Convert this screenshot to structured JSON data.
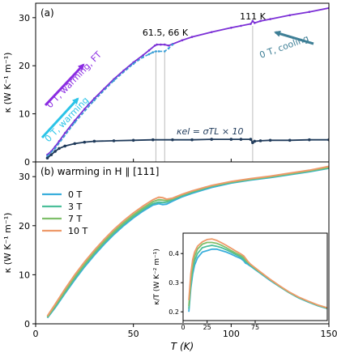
{
  "chart_data": [
    {
      "type": "line",
      "panel_label": "(a)",
      "ylabel": "κ (W K⁻¹ m⁻¹)",
      "ylim": [
        0,
        33
      ],
      "xlim": [
        0,
        150
      ],
      "yticks": [
        0,
        10,
        20,
        30
      ],
      "grid": false,
      "legend": "none",
      "annotations": {
        "transitions": "61.5, 66 K",
        "cooling_transition": "111 K",
        "warming_ft": "0 T, warming, FT",
        "warming": "0 T, warming",
        "cooling": "0 T, cooling",
        "kel_formula": "κel = σTL × 10"
      },
      "vlines": [
        61.5,
        66,
        111
      ],
      "series": [
        {
          "color": "#7b2fd6",
          "x": [
            6,
            8,
            10,
            12,
            15,
            20,
            25,
            30,
            35,
            40,
            45,
            50,
            55,
            58,
            61,
            62,
            64,
            66,
            68,
            70,
            75,
            80,
            90,
            100,
            105,
            110,
            111,
            112,
            115,
            120,
            130,
            140,
            150
          ],
          "y": [
            1.5,
            2.2,
            3.2,
            4.3,
            6.0,
            8.6,
            11.0,
            13.2,
            15.2,
            17.2,
            19.0,
            20.7,
            22.2,
            23.2,
            24.2,
            24.4,
            24.4,
            24.4,
            24.2,
            24.5,
            25.3,
            26.0,
            27.0,
            27.9,
            28.3,
            28.7,
            29.3,
            28.9,
            29.3,
            29.7,
            30.5,
            31.2,
            32.0
          ]
        },
        {
          "color": "#3a9fd6",
          "x": [
            6,
            10,
            20,
            30,
            40,
            50,
            55,
            58,
            60,
            61.5,
            63,
            66,
            68,
            70
          ],
          "y": [
            1.2,
            2.8,
            8.2,
            12.8,
            16.9,
            20.4,
            21.8,
            22.4,
            22.8,
            23.0,
            23.0,
            23.0,
            23.6,
            24.4
          ]
        },
        {
          "color": "#1f3a5a",
          "x": [
            6,
            8,
            10,
            12,
            15,
            20,
            25,
            30,
            40,
            50,
            60,
            70,
            80,
            90,
            100,
            105,
            110,
            111,
            112,
            115,
            120,
            130,
            140,
            150
          ],
          "y": [
            0.8,
            1.5,
            2.2,
            2.8,
            3.3,
            3.8,
            4.1,
            4.3,
            4.4,
            4.5,
            4.6,
            4.6,
            4.6,
            4.7,
            4.7,
            4.7,
            4.7,
            4.0,
            4.3,
            4.4,
            4.5,
            4.5,
            4.6,
            4.6
          ]
        }
      ]
    },
    {
      "type": "line",
      "panel_label": "(b) warming in H ∥ [111]",
      "xlabel": "T (K)",
      "ylabel": "κ (W K⁻¹ m⁻¹)",
      "xlim": [
        0,
        150
      ],
      "ylim": [
        0,
        33
      ],
      "xticks": [
        0,
        50,
        100,
        150
      ],
      "yticks": [
        0,
        10,
        20,
        30
      ],
      "grid": false,
      "legend": "top-left",
      "series": [
        {
          "name": "0 T",
          "color": "#3aaedc",
          "x": [
            6,
            10,
            15,
            20,
            25,
            30,
            35,
            40,
            45,
            50,
            55,
            60,
            63,
            65,
            67,
            70,
            75,
            80,
            90,
            100,
            110,
            120,
            130,
            140,
            150
          ],
          "y": [
            1.2,
            3.3,
            6.2,
            9.0,
            11.6,
            14.0,
            16.2,
            18.2,
            20.0,
            21.6,
            23.0,
            24.2,
            24.5,
            24.3,
            24.4,
            25.0,
            25.9,
            26.6,
            27.8,
            28.7,
            29.3,
            29.8,
            30.4,
            31.0,
            31.7
          ]
        },
        {
          "name": "3 T",
          "color": "#4cbf9a",
          "x": [
            6,
            10,
            15,
            20,
            25,
            30,
            35,
            40,
            45,
            50,
            55,
            60,
            63,
            65,
            67,
            70,
            75,
            80,
            90,
            100,
            110,
            120,
            130,
            140,
            150
          ],
          "y": [
            1.3,
            3.5,
            6.4,
            9.3,
            11.9,
            14.3,
            16.5,
            18.5,
            20.3,
            21.9,
            23.3,
            24.5,
            24.8,
            24.7,
            24.8,
            25.3,
            26.1,
            26.8,
            28.0,
            28.8,
            29.4,
            29.9,
            30.5,
            31.1,
            31.8
          ]
        },
        {
          "name": "7 T",
          "color": "#7fbf6a",
          "x": [
            6,
            10,
            15,
            20,
            25,
            30,
            35,
            40,
            45,
            50,
            55,
            60,
            63,
            65,
            67,
            70,
            75,
            80,
            90,
            100,
            110,
            120,
            130,
            140,
            150
          ],
          "y": [
            1.4,
            3.7,
            6.7,
            9.6,
            12.2,
            14.6,
            16.8,
            18.8,
            20.6,
            22.2,
            23.6,
            24.9,
            25.3,
            25.2,
            25.1,
            25.5,
            26.3,
            27.0,
            28.1,
            28.9,
            29.5,
            30.0,
            30.6,
            31.2,
            31.9
          ]
        },
        {
          "name": "10 T",
          "color": "#ee9a6a",
          "x": [
            6,
            10,
            15,
            20,
            25,
            30,
            35,
            40,
            45,
            50,
            55,
            60,
            63,
            65,
            67,
            70,
            75,
            80,
            90,
            100,
            110,
            120,
            130,
            140,
            150
          ],
          "y": [
            1.6,
            4.0,
            7.1,
            10.0,
            12.6,
            15.0,
            17.2,
            19.2,
            21.0,
            22.6,
            24.0,
            25.3,
            25.8,
            25.7,
            25.4,
            25.6,
            26.4,
            27.1,
            28.2,
            29.0,
            29.6,
            30.1,
            30.7,
            31.3,
            32.1
          ]
        }
      ],
      "inset": {
        "type": "line",
        "ylabel": "κ/T (W K⁻² m⁻¹)",
        "xlim": [
          0,
          150
        ],
        "ylim": [
          0.17,
          0.47
        ],
        "xticks": [
          0,
          25,
          75
        ],
        "yticks": [
          0.2,
          0.3,
          0.4
        ],
        "series": [
          {
            "name": "0 T",
            "color": "#3aaedc",
            "x": [
              6,
              8,
              10,
              12,
              15,
              20,
              25,
              30,
              35,
              40,
              45,
              50,
              55,
              60,
              63,
              65,
              67,
              70,
              75,
              80,
              90,
              100,
              110,
              120,
              130,
              140,
              150
            ],
            "y": [
              0.2,
              0.28,
              0.33,
              0.36,
              0.385,
              0.405,
              0.41,
              0.415,
              0.415,
              0.41,
              0.405,
              0.398,
              0.39,
              0.383,
              0.375,
              0.367,
              0.364,
              0.357,
              0.345,
              0.333,
              0.309,
              0.287,
              0.266,
              0.248,
              0.234,
              0.221,
              0.211
            ]
          },
          {
            "name": "3 T",
            "color": "#4cbf9a",
            "x": [
              6,
              8,
              10,
              12,
              15,
              20,
              25,
              30,
              35,
              40,
              45,
              50,
              55,
              60,
              63,
              65,
              67,
              70,
              75,
              80,
              90,
              100,
              110,
              120,
              130,
              140,
              150
            ],
            "y": [
              0.21,
              0.29,
              0.345,
              0.375,
              0.4,
              0.42,
              0.425,
              0.428,
              0.425,
              0.42,
              0.413,
              0.405,
              0.396,
              0.388,
              0.38,
              0.372,
              0.369,
              0.36,
              0.347,
              0.335,
              0.311,
              0.288,
              0.267,
              0.249,
              0.235,
              0.222,
              0.212
            ]
          },
          {
            "name": "7 T",
            "color": "#7fbf6a",
            "x": [
              6,
              8,
              10,
              12,
              15,
              20,
              25,
              30,
              35,
              40,
              45,
              50,
              55,
              60,
              63,
              65,
              67,
              70,
              75,
              80,
              90,
              100,
              110,
              120,
              130,
              140,
              150
            ],
            "y": [
              0.22,
              0.31,
              0.36,
              0.39,
              0.415,
              0.432,
              0.438,
              0.438,
              0.435,
              0.428,
              0.42,
              0.41,
              0.401,
              0.393,
              0.386,
              0.378,
              0.372,
              0.362,
              0.349,
              0.336,
              0.312,
              0.289,
              0.268,
              0.25,
              0.236,
              0.223,
              0.213
            ]
          },
          {
            "name": "10 T",
            "color": "#ee9a6a",
            "x": [
              6,
              8,
              10,
              12,
              15,
              20,
              25,
              30,
              35,
              40,
              45,
              50,
              55,
              60,
              63,
              65,
              67,
              70,
              75,
              80,
              90,
              100,
              110,
              120,
              130,
              140,
              150
            ],
            "y": [
              0.24,
              0.33,
              0.38,
              0.405,
              0.425,
              0.44,
              0.448,
              0.45,
              0.445,
              0.437,
              0.428,
              0.418,
              0.408,
              0.399,
              0.392,
              0.384,
              0.375,
              0.364,
              0.351,
              0.338,
              0.313,
              0.29,
              0.269,
              0.251,
              0.237,
              0.224,
              0.214
            ]
          }
        ]
      }
    }
  ]
}
